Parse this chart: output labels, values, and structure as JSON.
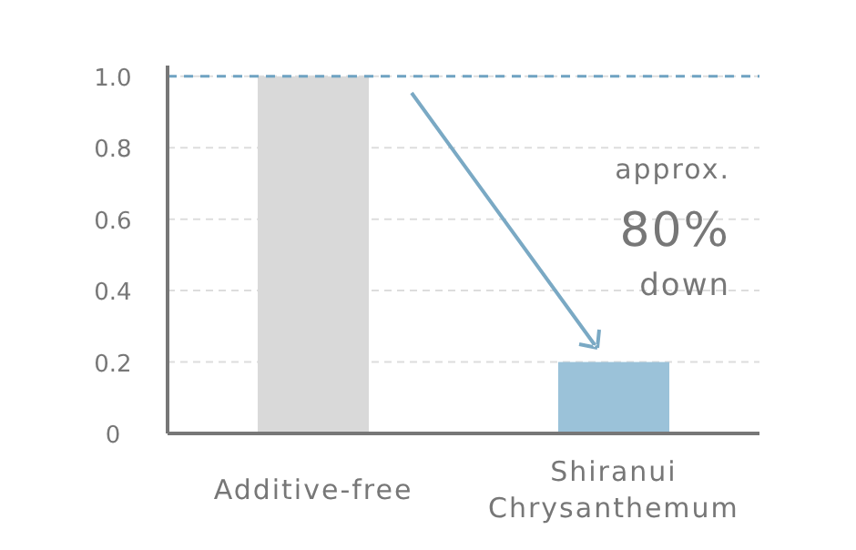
{
  "chart_data": {
    "type": "bar",
    "categories": [
      "Additive-free",
      "Shiranui Chrysanthemum"
    ],
    "values": [
      1,
      0.2
    ],
    "colors": [
      "#d9d9d9",
      "#9bc2d9"
    ],
    "ylim": [
      0,
      1.03
    ],
    "yticks": [
      0,
      0.2,
      0.4,
      0.6,
      0.8,
      {
        "value": 1,
        "label": "1.0"
      }
    ],
    "grid": "y",
    "ref_lines": [
      {
        "axis": "y",
        "value": 1,
        "color": "#6fa3c2",
        "line_style": "dashed"
      }
    ],
    "annotations": [
      "approx.",
      "80%",
      "down"
    ]
  }
}
